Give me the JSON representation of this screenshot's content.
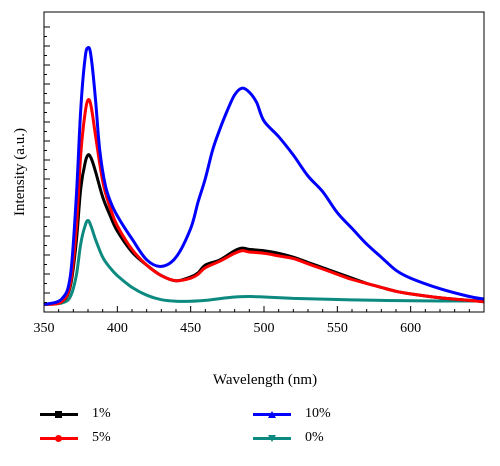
{
  "chart_data": {
    "type": "line",
    "title": "",
    "xlabel": "Wavelength (nm)",
    "ylabel": "Intensity (a.u.)",
    "xlim": [
      350,
      650
    ],
    "ylim": [
      0,
      1
    ],
    "x_ticks": [
      350,
      400,
      450,
      500,
      550,
      600
    ],
    "y_tick_labels_shown": false,
    "grid": false,
    "legend_position": "bottom",
    "series": [
      {
        "name": "1%",
        "color": "#000000",
        "marker": "square",
        "x": [
          350,
          362,
          368,
          372,
          375,
          378,
          380,
          382,
          385,
          390,
          395,
          400,
          410,
          420,
          430,
          440,
          450,
          455,
          460,
          470,
          480,
          485,
          490,
          500,
          510,
          520,
          530,
          540,
          550,
          560,
          570,
          580,
          590,
          600,
          620,
          640,
          650
        ],
        "y": [
          0.01,
          0.02,
          0.08,
          0.25,
          0.45,
          0.55,
          0.58,
          0.57,
          0.52,
          0.42,
          0.35,
          0.29,
          0.21,
          0.16,
          0.12,
          0.1,
          0.115,
          0.13,
          0.16,
          0.18,
          0.215,
          0.225,
          0.22,
          0.215,
          0.205,
          0.19,
          0.17,
          0.15,
          0.13,
          0.11,
          0.09,
          0.075,
          0.06,
          0.05,
          0.035,
          0.025,
          0.02
        ]
      },
      {
        "name": "5%",
        "color": "#ff0000",
        "marker": "circle",
        "x": [
          350,
          362,
          368,
          372,
          375,
          378,
          380,
          382,
          385,
          390,
          395,
          400,
          410,
          420,
          430,
          440,
          450,
          455,
          460,
          470,
          480,
          485,
          490,
          500,
          510,
          520,
          530,
          540,
          550,
          560,
          570,
          580,
          590,
          600,
          620,
          640,
          650
        ],
        "y": [
          0.01,
          0.02,
          0.09,
          0.3,
          0.58,
          0.74,
          0.79,
          0.77,
          0.66,
          0.48,
          0.38,
          0.31,
          0.22,
          0.16,
          0.12,
          0.1,
          0.11,
          0.125,
          0.15,
          0.175,
          0.205,
          0.215,
          0.21,
          0.205,
          0.195,
          0.185,
          0.165,
          0.145,
          0.125,
          0.105,
          0.09,
          0.075,
          0.06,
          0.05,
          0.035,
          0.025,
          0.02
        ]
      },
      {
        "name": "10%",
        "color": "#0000ff",
        "marker": "triangle",
        "x": [
          350,
          362,
          368,
          372,
          375,
          378,
          380,
          382,
          385,
          388,
          392,
          397,
          403,
          410,
          420,
          430,
          440,
          450,
          455,
          460,
          465,
          470,
          475,
          480,
          485,
          490,
          495,
          500,
          510,
          520,
          530,
          540,
          550,
          560,
          570,
          580,
          590,
          600,
          620,
          640,
          650
        ],
        "y": [
          0.01,
          0.03,
          0.12,
          0.42,
          0.75,
          0.95,
          0.99,
          0.96,
          0.8,
          0.6,
          0.46,
          0.38,
          0.32,
          0.26,
          0.18,
          0.155,
          0.19,
          0.3,
          0.4,
          0.49,
          0.6,
          0.68,
          0.75,
          0.81,
          0.835,
          0.82,
          0.78,
          0.71,
          0.65,
          0.58,
          0.5,
          0.44,
          0.36,
          0.3,
          0.24,
          0.19,
          0.14,
          0.11,
          0.07,
          0.04,
          0.03
        ]
      },
      {
        "name": "0%",
        "color": "#0d8a80",
        "marker": "inverted-triangle",
        "x": [
          350,
          362,
          368,
          372,
          375,
          378,
          380,
          382,
          385,
          390,
          395,
          400,
          410,
          420,
          430,
          440,
          450,
          460,
          470,
          480,
          490,
          500,
          520,
          540,
          560,
          580,
          600,
          620,
          640,
          650
        ],
        "y": [
          0.01,
          0.015,
          0.04,
          0.12,
          0.24,
          0.31,
          0.33,
          0.31,
          0.26,
          0.19,
          0.15,
          0.12,
          0.075,
          0.045,
          0.028,
          0.022,
          0.022,
          0.025,
          0.032,
          0.038,
          0.04,
          0.038,
          0.033,
          0.03,
          0.027,
          0.025,
          0.024,
          0.023,
          0.023,
          0.023
        ]
      }
    ]
  }
}
